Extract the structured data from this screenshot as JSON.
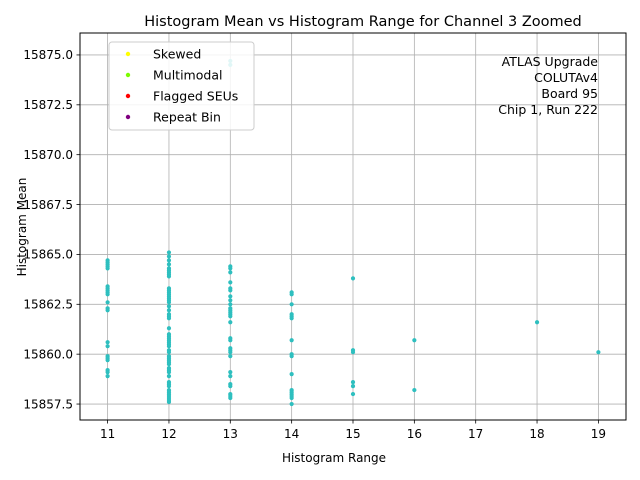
{
  "chart_data": {
    "type": "scatter",
    "title": "Histogram Mean vs Histogram Range for Channel 3 Zoomed",
    "xlabel": "Histogram Range",
    "ylabel": "Histogram Mean",
    "xlim": [
      10.55,
      19.45
    ],
    "ylim": [
      15856.7,
      15876.1
    ],
    "x_ticks": [
      11,
      12,
      13,
      14,
      15,
      16,
      17,
      18,
      19
    ],
    "y_ticks": [
      15857.5,
      15860.0,
      15862.5,
      15865.0,
      15867.5,
      15870.0,
      15872.5,
      15875.0
    ],
    "y_tick_labels": [
      "15857.5",
      "15860.0",
      "15862.5",
      "15865.0",
      "15867.5",
      "15870.0",
      "15872.5",
      "15875.0"
    ],
    "grid": true,
    "legend_position": "top-left",
    "annotation_lines": [
      "ATLAS Upgrade",
      "COLUTAv4",
      "Board 95",
      "Chip 1, Run 222"
    ],
    "series": [
      {
        "name": "Skewed",
        "color": "#ffff00",
        "points": []
      },
      {
        "name": "Multimodal",
        "color": "#7cfc00",
        "points": []
      },
      {
        "name": "Flagged SEUs",
        "color": "#ff0000",
        "points": []
      },
      {
        "name": "Repeat Bin",
        "color": "#800080",
        "points": []
      }
    ],
    "data_points": {
      "color": "#2ebfbf",
      "points": [
        [
          11,
          15864.7
        ],
        [
          11,
          15864.6
        ],
        [
          11,
          15864.5
        ],
        [
          11,
          15864.4
        ],
        [
          11,
          15864.3
        ],
        [
          11,
          15863.4
        ],
        [
          11,
          15863.3
        ],
        [
          11,
          15863.2
        ],
        [
          11,
          15863.1
        ],
        [
          11,
          15863.0
        ],
        [
          11,
          15862.6
        ],
        [
          11,
          15862.3
        ],
        [
          11,
          15862.2
        ],
        [
          11,
          15860.6
        ],
        [
          11,
          15860.4
        ],
        [
          11,
          15859.9
        ],
        [
          11,
          15859.8
        ],
        [
          11,
          15859.7
        ],
        [
          11,
          15859.2
        ],
        [
          11,
          15859.1
        ],
        [
          11,
          15858.9
        ],
        [
          12,
          15865.1
        ],
        [
          12,
          15864.9
        ],
        [
          12,
          15864.7
        ],
        [
          12,
          15864.5
        ],
        [
          12,
          15864.3
        ],
        [
          12,
          15864.2
        ],
        [
          12,
          15864.1
        ],
        [
          12,
          15864.0
        ],
        [
          12,
          15863.9
        ],
        [
          12,
          15863.3
        ],
        [
          12,
          15863.2
        ],
        [
          12,
          15863.1
        ],
        [
          12,
          15863.0
        ],
        [
          12,
          15862.9
        ],
        [
          12,
          15862.8
        ],
        [
          12,
          15862.7
        ],
        [
          12,
          15862.6
        ],
        [
          12,
          15862.4
        ],
        [
          12,
          15862.2
        ],
        [
          12,
          15862.0
        ],
        [
          12,
          15861.9
        ],
        [
          12,
          15861.8
        ],
        [
          12,
          15861.3
        ],
        [
          12,
          15861.0
        ],
        [
          12,
          15860.9
        ],
        [
          12,
          15860.8
        ],
        [
          12,
          15860.7
        ],
        [
          12,
          15860.6
        ],
        [
          12,
          15860.5
        ],
        [
          12,
          15860.4
        ],
        [
          12,
          15860.2
        ],
        [
          12,
          15860.1
        ],
        [
          12,
          15859.9
        ],
        [
          12,
          15859.8
        ],
        [
          12,
          15859.7
        ],
        [
          12,
          15859.6
        ],
        [
          12,
          15859.5
        ],
        [
          12,
          15859.3
        ],
        [
          12,
          15859.2
        ],
        [
          12,
          15859.1
        ],
        [
          12,
          15858.9
        ],
        [
          12,
          15858.6
        ],
        [
          12,
          15858.5
        ],
        [
          12,
          15858.4
        ],
        [
          12,
          15858.2
        ],
        [
          12,
          15858.1
        ],
        [
          12,
          15858.0
        ],
        [
          12,
          15857.9
        ],
        [
          12,
          15857.8
        ],
        [
          12,
          15857.7
        ],
        [
          12,
          15857.6
        ],
        [
          13,
          15874.7
        ],
        [
          13,
          15874.5
        ],
        [
          13,
          15864.4
        ],
        [
          13,
          15864.3
        ],
        [
          13,
          15864.1
        ],
        [
          13,
          15863.6
        ],
        [
          13,
          15863.3
        ],
        [
          13,
          15863.2
        ],
        [
          13,
          15862.9
        ],
        [
          13,
          15862.7
        ],
        [
          13,
          15862.5
        ],
        [
          13,
          15862.3
        ],
        [
          13,
          15862.2
        ],
        [
          13,
          15862.1
        ],
        [
          13,
          15862.0
        ],
        [
          13,
          15861.9
        ],
        [
          13,
          15861.6
        ],
        [
          13,
          15860.8
        ],
        [
          13,
          15860.7
        ],
        [
          13,
          15860.3
        ],
        [
          13,
          15860.2
        ],
        [
          13,
          15860.1
        ],
        [
          13,
          15859.9
        ],
        [
          13,
          15859.1
        ],
        [
          13,
          15858.9
        ],
        [
          13,
          15858.5
        ],
        [
          13,
          15858.4
        ],
        [
          13,
          15858.0
        ],
        [
          13,
          15857.9
        ],
        [
          13,
          15857.8
        ],
        [
          14,
          15863.1
        ],
        [
          14,
          15863.0
        ],
        [
          14,
          15862.5
        ],
        [
          14,
          15862.0
        ],
        [
          14,
          15861.9
        ],
        [
          14,
          15861.8
        ],
        [
          14,
          15860.7
        ],
        [
          14,
          15860.0
        ],
        [
          14,
          15859.9
        ],
        [
          14,
          15859.0
        ],
        [
          14,
          15858.2
        ],
        [
          14,
          15858.1
        ],
        [
          14,
          15858.0
        ],
        [
          14,
          15857.9
        ],
        [
          14,
          15857.8
        ],
        [
          14,
          15857.5
        ],
        [
          15,
          15863.8
        ],
        [
          15,
          15860.2
        ],
        [
          15,
          15860.1
        ],
        [
          15,
          15858.6
        ],
        [
          15,
          15858.4
        ],
        [
          15,
          15858.0
        ],
        [
          16,
          15860.7
        ],
        [
          16,
          15858.2
        ],
        [
          18,
          15861.6
        ],
        [
          19,
          15860.1
        ]
      ]
    }
  }
}
